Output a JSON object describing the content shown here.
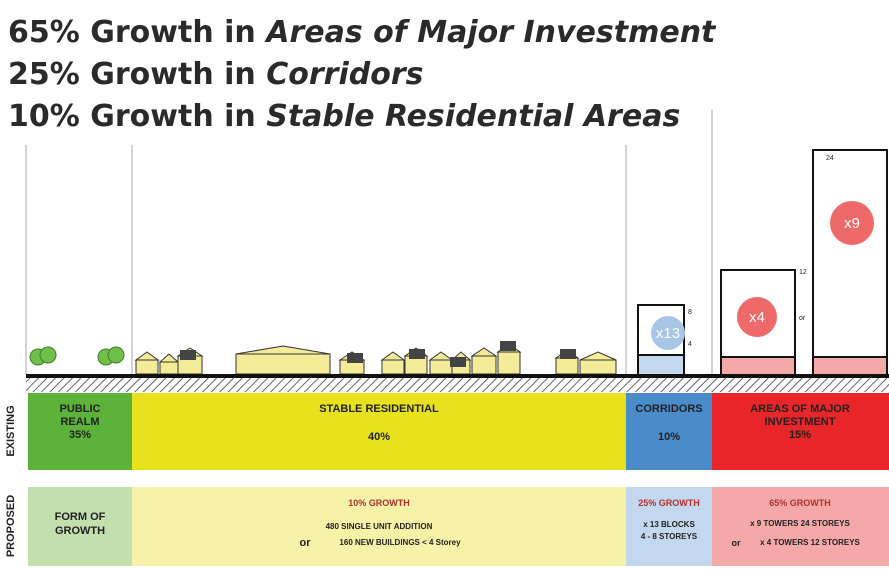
{
  "headlines": [
    {
      "lead": "65% Growth in ",
      "emphasis": "Areas of Major Investment"
    },
    {
      "lead": "25% Growth in ",
      "emphasis": "Corridors"
    },
    {
      "lead": "10% Growth in ",
      "emphasis": "Stable Residential Areas"
    }
  ],
  "buildings": {
    "corridor": {
      "multiplier": "x13",
      "top_label": "8",
      "mid_label": "4"
    },
    "mid_tower": {
      "multiplier": "x4",
      "top_label": "12",
      "or_label": "or"
    },
    "tall_tower": {
      "multiplier": "x9",
      "top_label": "24"
    }
  },
  "row_labels": {
    "existing": "EXISTING",
    "proposed": "PROPOSED"
  },
  "existing": [
    {
      "title": [
        "PUBLIC",
        "REALM"
      ],
      "share": "35%"
    },
    {
      "title": [
        "STABLE RESIDENTIAL"
      ],
      "share": "40%"
    },
    {
      "title": [
        "CORRIDORS"
      ],
      "share": "10%"
    },
    {
      "title": [
        "AREAS OF MAJOR",
        "INVESTMENT"
      ],
      "share": "15%"
    }
  ],
  "proposed": {
    "public": {
      "title": [
        "FORM OF",
        "GROWTH"
      ]
    },
    "stable": {
      "growth": "10% GROWTH",
      "line1": "480 SINGLE UNIT ADDITION",
      "or": "or",
      "line2": "160 NEW BUILDINGS < 4 Storey"
    },
    "corridor": {
      "growth": "25% GROWTH",
      "line1": "x 13 BLOCKS",
      "line2": "4 - 8 STOREYS"
    },
    "major": {
      "growth": "65% GROWTH",
      "line1": "x 9 TOWERS 24 STOREYS",
      "or": "or",
      "line2": "x 4 TOWERS 12 STOREYS"
    }
  }
}
